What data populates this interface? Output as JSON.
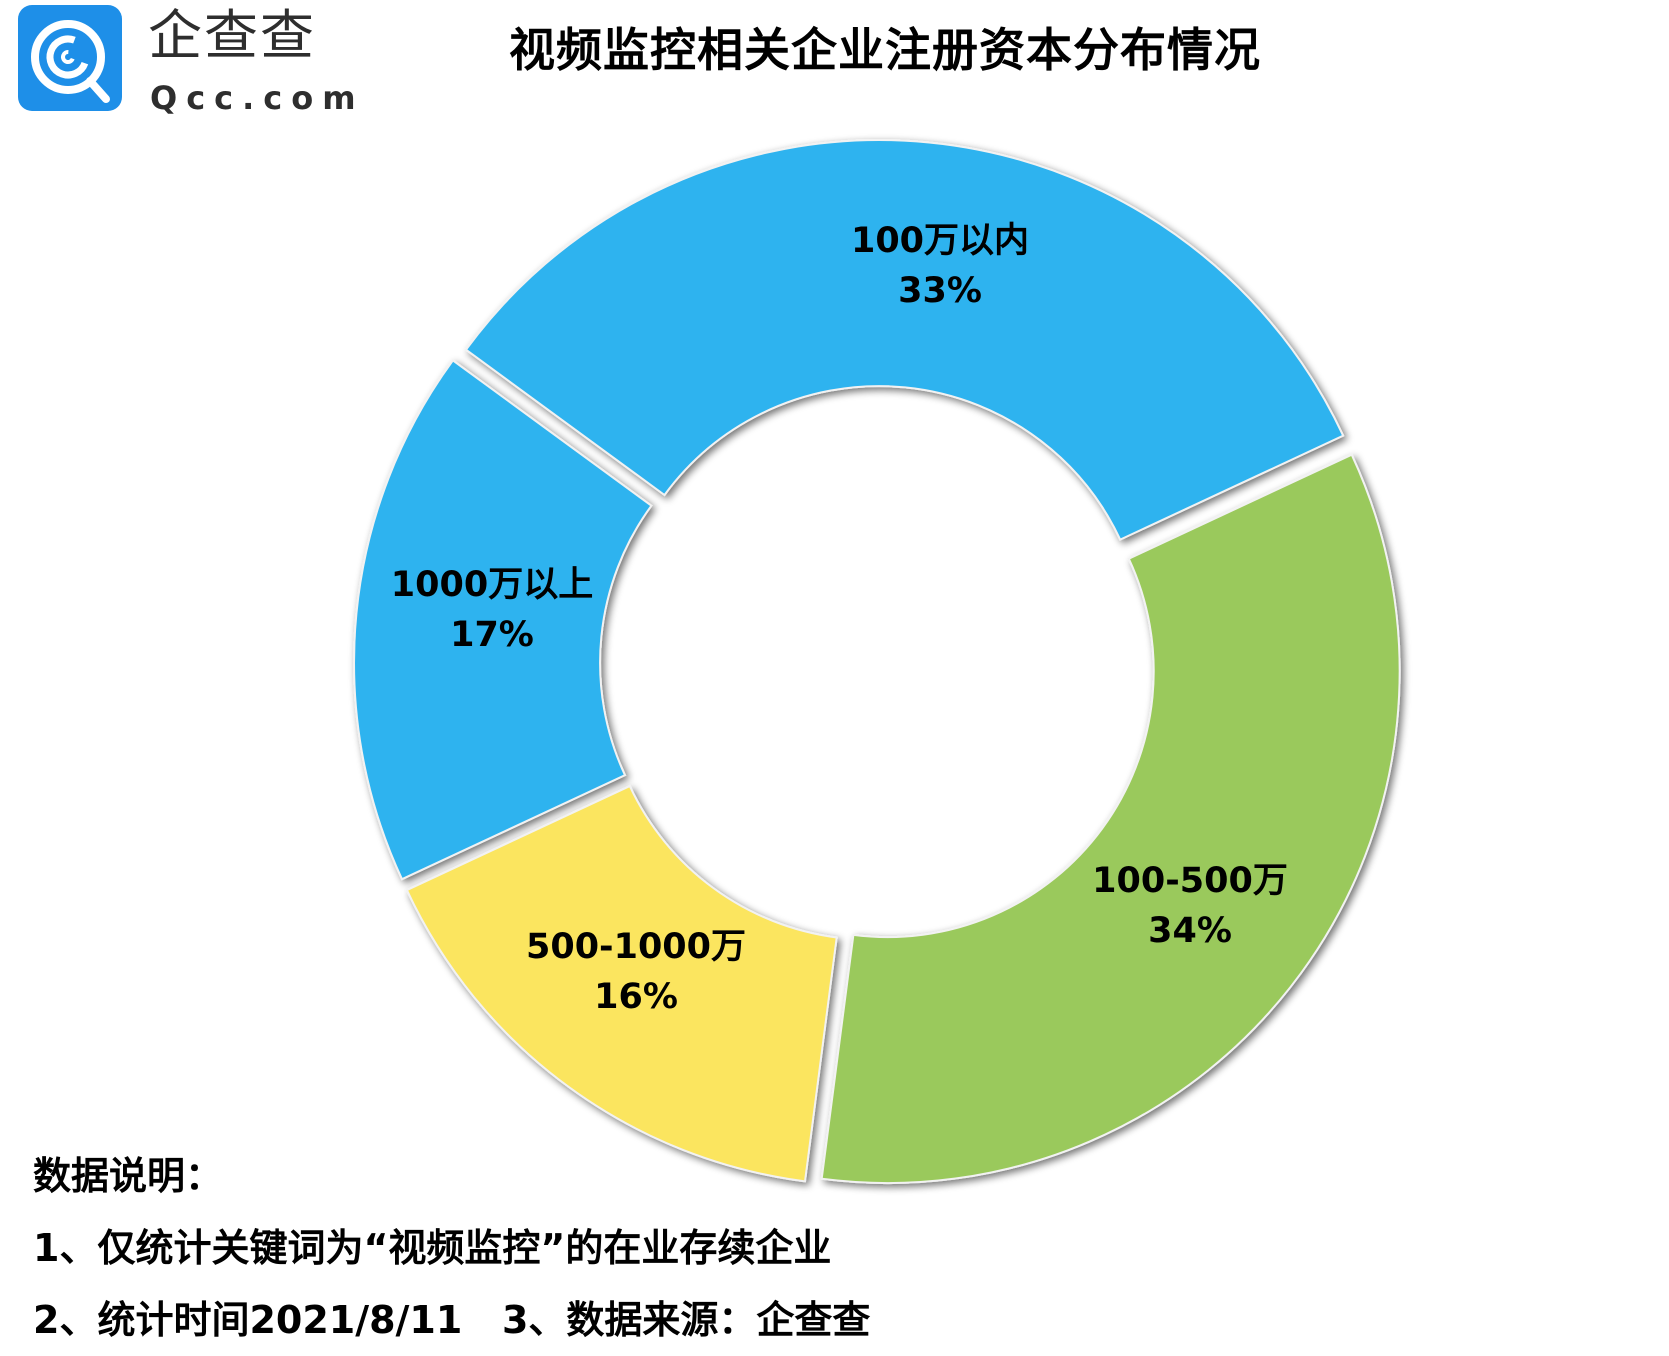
{
  "header": {
    "brand_cn": "企查查",
    "brand_en": "Qcc.com",
    "logo_icon": "qcc-logo-icon",
    "logo_color": "#1e8fe8"
  },
  "title": "视频监控相关企业注册资本分布情况",
  "chart_data": {
    "type": "pie",
    "variant": "donut",
    "title": "视频监控相关企业注册资本分布情况",
    "categories": [
      "100万以内",
      "100-500万",
      "500-1000万",
      "1000万以上"
    ],
    "values": [
      33,
      34,
      16,
      17
    ],
    "unit": "%",
    "colors": [
      "#2fb3ef",
      "#9ac95c",
      "#fbe55f",
      "#2fb3ef"
    ],
    "labels": [
      {
        "name": "100万以内",
        "value": "33%"
      },
      {
        "name": "100-500万",
        "value": "34%"
      },
      {
        "name": "500-1000万",
        "value": "16%"
      },
      {
        "name": "1000万以上",
        "value": "17%"
      }
    ],
    "legend": "none"
  },
  "notes": {
    "heading": "数据说明：",
    "line1": "1、仅统计关键词为“视频监控”的在业存续企业",
    "line2": "2、统计时间2021/8/11   3、数据来源：企查查"
  }
}
